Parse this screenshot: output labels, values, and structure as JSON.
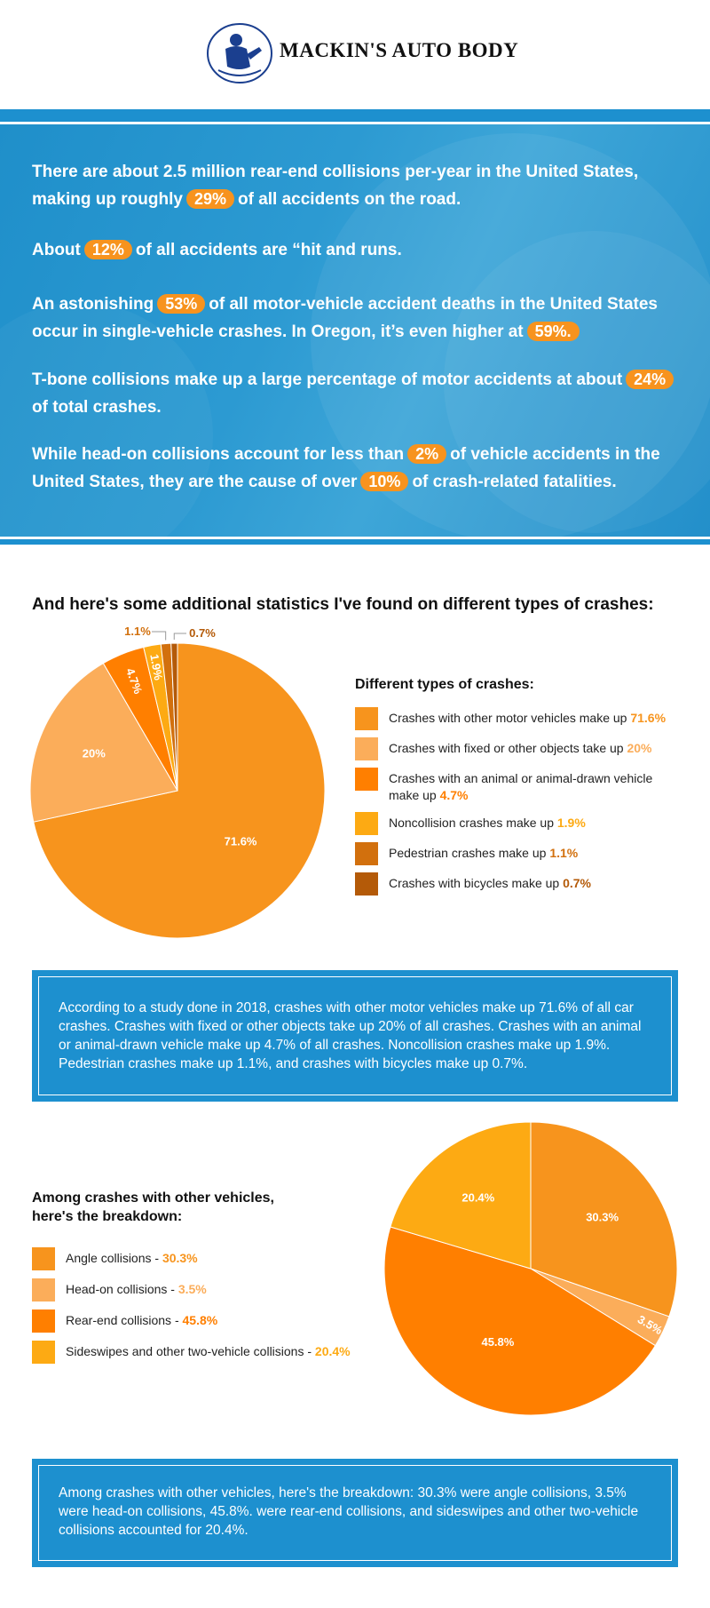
{
  "header": {
    "brand": "MACKIN'S AUTO BODY"
  },
  "hero": {
    "stats": [
      {
        "before": "There are about 2.5 million rear-end collisions per-year in the United States, making up roughly",
        "pct": "29%",
        "after": "of all accidents on the road."
      },
      {
        "before": "About",
        "pct": "12%",
        "after": "of all accidents are “hit and runs."
      },
      {
        "before": "An astonishing",
        "pct": "53%",
        "after": "of all motor-vehicle accident deaths in the United States occur in single-vehicle crashes. In Oregon, it’s even higher at",
        "pct2": "59%."
      },
      {
        "before": "T-bone collisions make up a large percentage of motor accidents at about",
        "pct": "24%",
        "after": "of total crashes."
      },
      {
        "before": "While head-on collisions account for less than",
        "pct": "2%",
        "after": "of vehicle accidents in the United States, they are the cause of over",
        "pct2": "10%",
        "after2": "of crash-related fatalities."
      }
    ]
  },
  "section_title": "And here's some additional statistics I've found on different types of crashes:",
  "legend1": {
    "title": "Different types of crashes:",
    "items": [
      {
        "text": "Crashes with other motor vehicles make up",
        "value": "71.6%",
        "color": "#f7941d"
      },
      {
        "text": "Crashes with fixed or other objects take up",
        "value": "20%",
        "color": "#fbad5a"
      },
      {
        "text": "Crashes with an animal or animal-drawn vehicle make up",
        "value": "4.7%",
        "color": "#ff7f00"
      },
      {
        "text": "Noncollision crashes make up",
        "value": "1.9%",
        "color": "#fdaa13"
      },
      {
        "text": "Pedestrian crashes make up",
        "value": "1.1%",
        "color": "#d2700d"
      },
      {
        "text": "Crashes with bicycles make up",
        "value": "0.7%",
        "color": "#b45a08"
      }
    ]
  },
  "summary1": "According to a study done in 2018, crashes with other motor vehicles make up 71.6% of all car crashes. Crashes with fixed or other objects take up 20% of all crashes. Crashes with an animal or animal-drawn vehicle make up 4.7% of all crashes. Noncollision crashes make up 1.9%. Pedestrian crashes make up 1.1%, and crashes with bicycles make up 0.7%.",
  "legend2": {
    "title_line1": "Among crashes with other vehicles,",
    "title_line2": "here's the breakdown:",
    "items": [
      {
        "text": "Angle collisions -",
        "value": "30.3%",
        "color": "#f7941d"
      },
      {
        "text": "Head-on collisions -",
        "value": "3.5%",
        "color": "#fbad5a"
      },
      {
        "text": "Rear-end collisions -",
        "value": "45.8%",
        "color": "#ff7f00"
      },
      {
        "text": "Sideswipes and other two-vehicle collisions -",
        "value": "20.4%",
        "color": "#fdaa13"
      }
    ]
  },
  "summary2": "Among crashes with other vehicles, here's the breakdown: 30.3% were angle collisions, 3.5% were head-on collisions, 45.8%. were rear-end collisions, and sideswipes and other two-vehicle collisions accounted for 20.4%.",
  "chart_data": [
    {
      "type": "pie",
      "categories": [
        "Crashes with other motor vehicles",
        "Crashes with fixed or other objects",
        "Crashes with an animal or animal-drawn vehicle",
        "Noncollision crashes",
        "Pedestrian crashes",
        "Crashes with bicycles"
      ],
      "values": [
        71.6,
        20,
        4.7,
        1.9,
        1.1,
        0.7
      ],
      "labels": [
        "71.6%",
        "20%",
        "4.7%",
        "1.9%",
        "1.1%",
        "0.7%"
      ],
      "colors": [
        "#f7941d",
        "#fbad5a",
        "#ff7f00",
        "#fdaa13",
        "#d2700d",
        "#b45a08"
      ],
      "legend": "right"
    },
    {
      "type": "pie",
      "categories": [
        "Angle collisions",
        "Head-on collisions",
        "Rear-end collisions",
        "Sideswipes and other two-vehicle collisions"
      ],
      "values": [
        30.3,
        3.5,
        45.8,
        20.4
      ],
      "labels": [
        "30.3%",
        "3.5%",
        "45.8%",
        "20.4%"
      ],
      "colors": [
        "#f7941d",
        "#fbad5a",
        "#ff7f00",
        "#fdaa13"
      ],
      "legend": "left"
    }
  ]
}
